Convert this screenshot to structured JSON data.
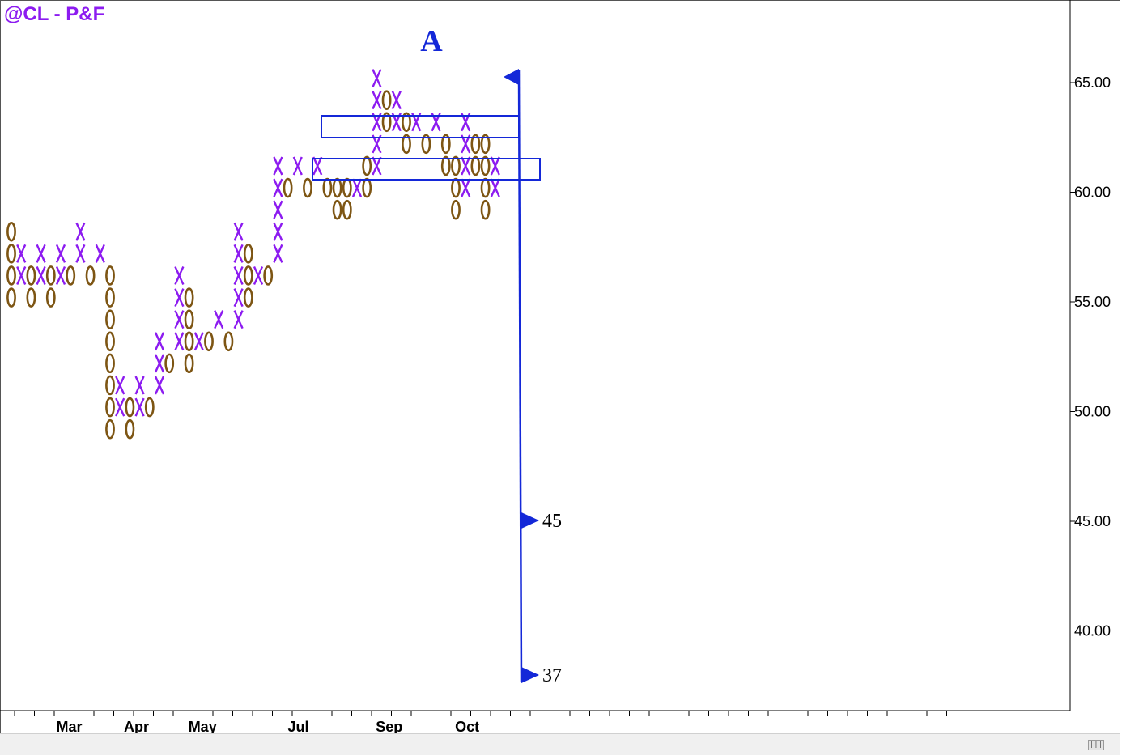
{
  "title": "@CL - P&F",
  "colors": {
    "x": "#8c1bf0",
    "o": "#7d5513",
    "annotation": "#1428d8",
    "axis": "#000000"
  },
  "chart_data": {
    "type": "point-and-figure",
    "box_size": 1,
    "ylim": [
      36.5,
      67
    ],
    "y_ticks": [
      "65.00",
      "60.00",
      "55.00",
      "50.00",
      "45.00",
      "40.00"
    ],
    "y_tick_values": [
      65,
      60,
      55,
      50,
      45,
      40
    ],
    "month_labels": [
      {
        "label": "Mar",
        "col": 2.5
      },
      {
        "label": "Apr",
        "col": 9.3
      },
      {
        "label": "May",
        "col": 16
      },
      {
        "label": "Jul",
        "col": 25.7
      },
      {
        "label": "Sep",
        "col": 34.9
      },
      {
        "label": "Oct",
        "col": 42.8
      }
    ],
    "columns": [
      {
        "t": "O",
        "high": 58.2,
        "low": 55.2
      },
      {
        "t": "X",
        "high": 57.2,
        "low": 56.2
      },
      {
        "t": "O",
        "high": 56.2,
        "low": 55.2
      },
      {
        "t": "X",
        "high": 57.2,
        "low": 56.2
      },
      {
        "t": "O",
        "high": 56.2,
        "low": 55.2
      },
      {
        "t": "X",
        "high": 57.2,
        "low": 56.2
      },
      {
        "t": "O",
        "high": 56.2,
        "low": 56.2
      },
      {
        "t": "X",
        "high": 58.2,
        "low": 57.2
      },
      {
        "t": "O",
        "high": 56.2,
        "low": 56.2
      },
      {
        "t": "X",
        "high": 57.2,
        "low": 57.2
      },
      {
        "t": "O",
        "high": 56.2,
        "low": 49.2
      },
      {
        "t": "X",
        "high": 51.2,
        "low": 50.2
      },
      {
        "t": "O",
        "high": 50.2,
        "low": 49.2
      },
      {
        "t": "X",
        "high": 51.2,
        "low": 50.2
      },
      {
        "t": "O",
        "high": 50.2,
        "low": 50.2
      },
      {
        "t": "X",
        "high": 53.2,
        "low": 51.2
      },
      {
        "t": "O",
        "high": 52.2,
        "low": 52.2
      },
      {
        "t": "X",
        "high": 56.2,
        "low": 53.2
      },
      {
        "t": "O",
        "high": 55.2,
        "low": 52.2
      },
      {
        "t": "X",
        "high": 53.2,
        "low": 53.2
      },
      {
        "t": "O",
        "high": 53.2,
        "low": 53.2
      },
      {
        "t": "X",
        "high": 54.2,
        "low": 54.2
      },
      {
        "t": "O",
        "high": 53.2,
        "low": 53.2
      },
      {
        "t": "X",
        "high": 58.2,
        "low": 54.2
      },
      {
        "t": "O",
        "high": 57.2,
        "low": 55.2
      },
      {
        "t": "X",
        "high": 56.2,
        "low": 56.2
      },
      {
        "t": "O",
        "high": 56.2,
        "low": 56.2
      },
      {
        "t": "X",
        "high": 61.2,
        "low": 57.2
      },
      {
        "t": "O",
        "high": 60.2,
        "low": 60.2
      },
      {
        "t": "X",
        "high": 61.2,
        "low": 61.2
      },
      {
        "t": "O",
        "high": 60.2,
        "low": 60.2
      },
      {
        "t": "X",
        "high": 61.2,
        "low": 61.2
      },
      {
        "t": "O",
        "high": 60.2,
        "low": 60.2
      },
      {
        "t": "O",
        "high": 60.2,
        "low": 59.2
      },
      {
        "t": "O",
        "high": 60.2,
        "low": 59.2
      },
      {
        "t": "X",
        "high": 60.2,
        "low": 60.2
      },
      {
        "t": "O",
        "high": 61.2,
        "low": 60.2
      },
      {
        "t": "X",
        "high": 65.2,
        "low": 61.2
      },
      {
        "t": "O",
        "high": 64.2,
        "low": 63.2
      },
      {
        "t": "X",
        "high": 64.2,
        "low": 63.2
      },
      {
        "t": "O",
        "high": 63.2,
        "low": 62.2
      },
      {
        "t": "X",
        "high": 63.2,
        "low": 63.2
      },
      {
        "t": "O",
        "high": 62.2,
        "low": 62.2
      },
      {
        "t": "X",
        "high": 63.2,
        "low": 63.2
      },
      {
        "t": "O",
        "high": 62.2,
        "low": 61.2
      },
      {
        "t": "O",
        "high": 61.2,
        "low": 59.2
      },
      {
        "t": "X",
        "high": 63.2,
        "low": 60.2
      },
      {
        "t": "O",
        "high": 62.2,
        "low": 61.2
      },
      {
        "t": "O",
        "high": 62.2,
        "low": 59.2
      },
      {
        "t": "X",
        "high": 61.2,
        "low": 60.2
      }
    ]
  },
  "annotations": {
    "label_a": "A",
    "target_1": "45",
    "target_2": "37"
  },
  "scrollbar": {
    "thumb_label": "|||"
  }
}
